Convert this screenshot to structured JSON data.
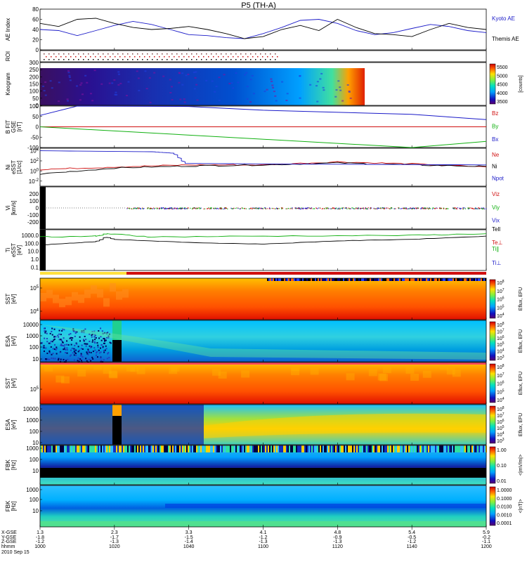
{
  "title": "P5 (TH-A)",
  "date_label": "2010 Sep 15",
  "footer_rows": [
    "X-GSE",
    "Y-GSE",
    "Z-GSE",
    "hhmm"
  ],
  "footer_cols": [
    {
      "hhmm": "1000",
      "x": "1.3",
      "y": "-1.8",
      "z": "-1.2"
    },
    {
      "hhmm": "1020",
      "x": "2.3",
      "y": "-1.7",
      "z": "-1.3"
    },
    {
      "hhmm": "1040",
      "x": "3.3",
      "y": "-1.5",
      "z": "-1.4"
    },
    {
      "hhmm": "1100",
      "x": "4.1",
      "y": "-1.2",
      "z": "-1.3"
    },
    {
      "hhmm": "1120",
      "x": "4.8",
      "y": "-0.9",
      "z": "-1.3"
    },
    {
      "hhmm": "1140",
      "x": "5.4",
      "y": "-0.5",
      "z": "-1.2"
    },
    {
      "hhmm": "1200",
      "x": "5.9",
      "y": "-0.2",
      "z": "-1.1"
    }
  ],
  "colors": {
    "blue": "#1a1ac8",
    "red": "#d01010",
    "green": "#10b010",
    "black": "#000000"
  },
  "chart_data": [
    {
      "type": "line",
      "panel": "ae",
      "ylabel": "AE Index",
      "ylim": [
        0,
        80
      ],
      "yticks": [
        "0",
        "20",
        "40",
        "60",
        "80"
      ],
      "series": [
        {
          "name": "Kyoto AE",
          "color": "blue",
          "x": [
            1000,
            1005,
            1010,
            1015,
            1020,
            1025,
            1030,
            1035,
            1040,
            1045,
            1050,
            1055,
            1100,
            1105,
            1110,
            1115,
            1120,
            1125,
            1130,
            1135,
            1140,
            1145,
            1150,
            1155,
            1200
          ],
          "values": [
            40,
            38,
            28,
            38,
            48,
            56,
            50,
            40,
            30,
            28,
            24,
            22,
            32,
            44,
            58,
            60,
            52,
            38,
            30,
            34,
            42,
            50,
            46,
            38,
            34
          ]
        },
        {
          "name": "Themis AE",
          "color": "black",
          "x": [
            1000,
            1005,
            1010,
            1015,
            1020,
            1025,
            1030,
            1035,
            1040,
            1045,
            1050,
            1055,
            1100,
            1105,
            1110,
            1115,
            1120,
            1125,
            1130,
            1135,
            1140,
            1145,
            1150,
            1155,
            1200
          ],
          "values": [
            52,
            46,
            60,
            62,
            52,
            44,
            40,
            42,
            46,
            40,
            32,
            22,
            26,
            40,
            48,
            38,
            60,
            44,
            32,
            30,
            26,
            40,
            52,
            44,
            40
          ]
        }
      ]
    },
    {
      "type": "heatmap",
      "panel": "roi",
      "ylabel": "ROI"
    },
    {
      "type": "heatmap",
      "panel": "keogram",
      "ylabel": "Keogram",
      "ylim": [
        0,
        300
      ],
      "yticks": [
        "300",
        "250",
        "200",
        "150",
        "100",
        "50",
        "0"
      ],
      "colorbar_label": "[counts]",
      "colorbar_ticks": [
        "5500",
        "5000",
        "4500",
        "4000",
        "3500"
      ]
    },
    {
      "type": "line",
      "panel": "bfit",
      "ylabel": "B FIT",
      "ylabel2": "GSE",
      "ylabel3": "[nT]",
      "ylim": [
        -100,
        100
      ],
      "yticks": [
        "100",
        "50",
        "0",
        "-50",
        "-100"
      ],
      "series": [
        {
          "name": "Bz",
          "color": "red",
          "x": [
            1000,
            1200
          ],
          "values": [
            0,
            0
          ]
        },
        {
          "name": "By",
          "color": "green",
          "x": [
            1000,
            1140,
            1200
          ],
          "values": [
            0,
            -104,
            -70
          ]
        },
        {
          "name": "Bx",
          "color": "blue",
          "x": [
            1000,
            1010,
            1040,
            1100,
            1140,
            1200
          ],
          "values": [
            55,
            100,
            98,
            80,
            60,
            35
          ]
        }
      ]
    },
    {
      "type": "line",
      "panel": "ni",
      "ylabel": "Ni",
      "ylabel2": "eSST",
      "ylabel3": "[1/cc]",
      "ylim_log": [
        -3,
        4.5
      ],
      "yticks": [
        "10^4",
        "10^2",
        "10^0",
        "10^-2"
      ],
      "series": [
        {
          "name": "Ne",
          "color": "red",
          "x": [
            1000,
            1020,
            1040,
            1100,
            1120,
            1140,
            1200
          ],
          "values": [
            0.3,
            0.8,
            1.2,
            1.2,
            1.8,
            1.4,
            0.8
          ]
        },
        {
          "name": "Ni",
          "color": "black",
          "x": [
            1000,
            1020,
            1040,
            1100,
            1120,
            1140,
            1200
          ],
          "values": [
            -0.6,
            0.6,
            1.0,
            1.2,
            1.6,
            1.2,
            0.9
          ]
        },
        {
          "name": "Npot",
          "color": "blue",
          "x": [
            1000,
            1030,
            1036,
            1039,
            1100,
            1200
          ],
          "values": [
            4.0,
            3.8,
            3.5,
            1.5,
            1.4,
            1.2
          ]
        }
      ]
    },
    {
      "type": "scatter",
      "panel": "vi",
      "ylabel": "Vi",
      "ylabel2": "[km/s]",
      "ylim": [
        -300,
        300
      ],
      "yticks": [
        "200",
        "100",
        "0",
        "-100",
        "-200"
      ],
      "series": [
        {
          "name": "Viz",
          "color": "red"
        },
        {
          "name": "Viy",
          "color": "green"
        },
        {
          "name": "Vix",
          "color": "blue"
        }
      ]
    },
    {
      "type": "line",
      "panel": "ti",
      "ylabel": "Ti",
      "ylabel2": "eSST",
      "ylabel3": "[eV]",
      "ylim_log": [
        -1.4,
        3.7
      ],
      "yticks": [
        "1000.0",
        "100.0",
        "10.0",
        "1.0",
        "0.1"
      ],
      "series": [
        {
          "name": "Tell",
          "color": "black",
          "x": [
            1000,
            1015,
            1018,
            1020,
            1040,
            1100,
            1120,
            1140,
            1200
          ],
          "values": [
            1.8,
            2.2,
            2.8,
            2.5,
            2.1,
            1.9,
            2.3,
            2.5,
            2.9
          ]
        },
        {
          "name": "Te⊥",
          "color": "red",
          "x": [
            1000,
            1200
          ],
          "values": [
            3.0,
            3.0
          ]
        },
        {
          "name": "Ti∥",
          "color": "green",
          "x": [
            1000,
            1015,
            1018,
            1030,
            1100,
            1140,
            1200
          ],
          "values": [
            2.8,
            2.9,
            3.2,
            2.8,
            2.9,
            3.0,
            3.2
          ]
        },
        {
          "name": "Ti⊥",
          "color": "blue",
          "x": [
            1000,
            1200
          ],
          "values": [
            3.3,
            3.3
          ]
        }
      ]
    },
    {
      "type": "heatmap",
      "panel": "sst1",
      "ylabel": "SST",
      "ylabel2": "[eV]",
      "yticks": [
        "10^5",
        "10^4"
      ],
      "colorbar_label": "Eflux, EFU",
      "colorbar_ticks": [
        "10^8",
        "10^7",
        "10^6",
        "10^5",
        "10^4"
      ]
    },
    {
      "type": "heatmap",
      "panel": "esa1",
      "ylabel": "ESA",
      "ylabel2": "[eV]",
      "yticks": [
        "10000",
        "1000",
        "100",
        "10"
      ],
      "colorbar_label": "Eflux, EFU",
      "colorbar_ticks": [
        "10^8",
        "10^7",
        "10^6",
        "10^5",
        "10^4",
        "10^3"
      ]
    },
    {
      "type": "heatmap",
      "panel": "sst2",
      "ylabel": "SST",
      "ylabel2": "[eV]",
      "yticks": [
        "10^5"
      ],
      "colorbar_label": "Eflux, EFU",
      "colorbar_ticks": [
        "10^8",
        "10^7",
        "10^6",
        "10^5",
        "10^4"
      ]
    },
    {
      "type": "heatmap",
      "panel": "esa2",
      "ylabel": "ESA",
      "ylabel2": "[eV]",
      "yticks": [
        "10000",
        "1000",
        "100",
        "10"
      ],
      "colorbar_label": "Eflux, EFU",
      "colorbar_ticks": [
        "10^8",
        "10^7",
        "10^6",
        "10^5",
        "10^4",
        "10^3"
      ]
    },
    {
      "type": "heatmap",
      "panel": "fbk1",
      "ylabel": "FBK",
      "ylabel2": "[Hz]",
      "yticks": [
        "1000",
        "100",
        "10"
      ],
      "colorbar_label": "<|mV/m|>",
      "colorbar_ticks": [
        "1.00",
        "0.10",
        "0.01"
      ]
    },
    {
      "type": "heatmap",
      "panel": "fbk2",
      "ylabel": "FBK",
      "ylabel2": "[Hz]",
      "yticks": [
        "1000",
        "100",
        "10"
      ],
      "colorbar_label": "<|nT|>",
      "colorbar_ticks": [
        "1.0000",
        "0.1000",
        "0.0100",
        "0.0010",
        "0.0001"
      ]
    }
  ]
}
